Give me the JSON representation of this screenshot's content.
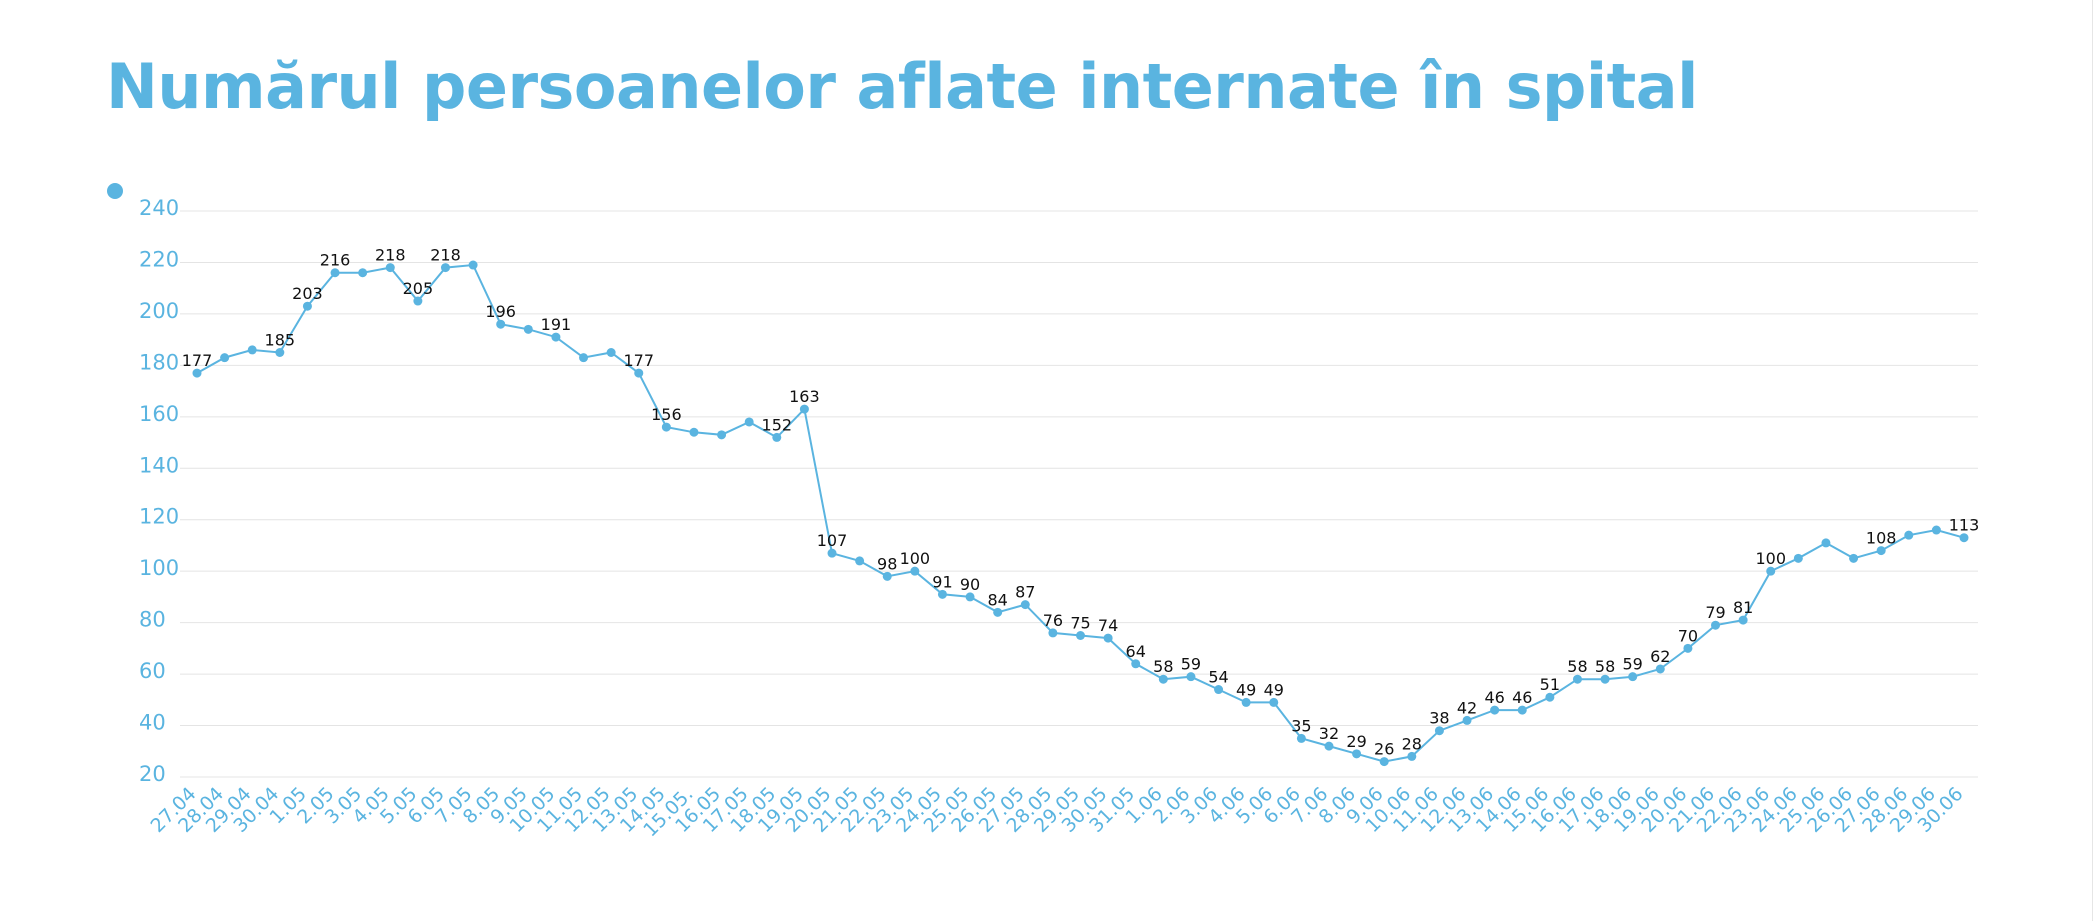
{
  "title": "Numărul persoanelor aflate internate în spital",
  "chart_data": {
    "type": "line",
    "title": "Numărul persoanelor aflate internate în spital",
    "xlabel": "",
    "ylabel": "",
    "ylim": [
      20,
      240
    ],
    "yticks": [
      20,
      40,
      60,
      80,
      100,
      120,
      140,
      160,
      180,
      200,
      220,
      240
    ],
    "grid": true,
    "legend": "top-left",
    "color": "#5ab4e0",
    "categories": [
      "27.04",
      "28.04",
      "29.04",
      "30.04",
      "1.05",
      "2.05",
      "3.05",
      "4.05",
      "5.05",
      "6.05",
      "7.05",
      "8.05",
      "9.05",
      "10.05",
      "11.05",
      "12.05",
      "13.05",
      "14.05",
      "15.05.",
      "16.05",
      "17.05",
      "18.05",
      "19.05",
      "20.05",
      "21.05",
      "22.05",
      "23.05",
      "24.05",
      "25.05",
      "26.05",
      "27.05",
      "28.05",
      "29.05",
      "30.05",
      "31.05",
      "1.06",
      "2.06",
      "3.06",
      "4.06",
      "5.06",
      "6.06",
      "7.06",
      "8.06",
      "9.06",
      "10.06",
      "11.06",
      "12.06",
      "13.06",
      "14.06",
      "15.06",
      "16.06",
      "17.06",
      "18.06",
      "19.06",
      "20.06",
      "21.06",
      "22.06",
      "23.06",
      "24.06",
      "25.06",
      "26.06",
      "27.06",
      "28.06",
      "29.06",
      "30.06"
    ],
    "series": [
      {
        "values": [
          177,
          183,
          186,
          185,
          203,
          216,
          216,
          218,
          205,
          218,
          219,
          196,
          194,
          191,
          183,
          185,
          177,
          156,
          154,
          153,
          158,
          152,
          163,
          107,
          104,
          98,
          100,
          91,
          90,
          84,
          87,
          76,
          75,
          74,
          64,
          58,
          59,
          54,
          49,
          49,
          35,
          32,
          29,
          26,
          28,
          38,
          42,
          46,
          46,
          51,
          58,
          58,
          59,
          62,
          70,
          79,
          81,
          100,
          105,
          111,
          105,
          108,
          114,
          116,
          113
        ],
        "labels": [
          "177",
          "",
          "",
          "185",
          "203",
          "216",
          "",
          "218",
          "205",
          "218",
          "",
          "196",
          "",
          "191",
          "",
          "",
          "177",
          "156",
          "",
          "",
          "",
          "152",
          "163",
          "107",
          "",
          "98",
          "100",
          "91",
          "90",
          "84",
          "87",
          "76",
          "75",
          "74",
          "64",
          "58",
          "59",
          "54",
          "49",
          "49",
          "35",
          "32",
          "29",
          "26",
          "28",
          "38",
          "42",
          "46",
          "46",
          "51",
          "58",
          "58",
          "59",
          "62",
          "70",
          "79",
          "81",
          "100",
          "",
          "",
          "",
          "108",
          "",
          "",
          "113"
        ]
      }
    ]
  }
}
